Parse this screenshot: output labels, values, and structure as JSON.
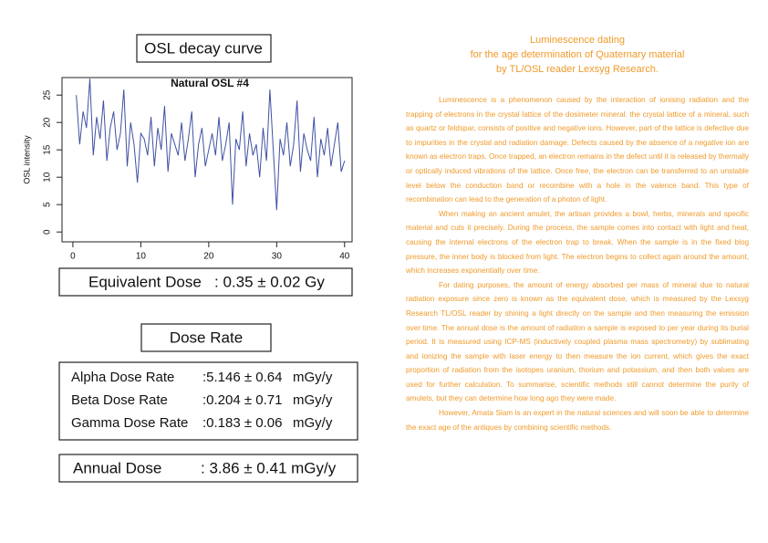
{
  "panel": {
    "curve_heading": "OSL decay curve",
    "equivalent_dose": {
      "label": "Equivalent Dose",
      "value": ": 0.35 ± 0.02 Gy"
    },
    "dose_rate_heading": "Dose Rate",
    "dose_rates": [
      {
        "label": "Alpha Dose Rate",
        "value": ":5.146 ± 0.64",
        "unit": "mGy/y"
      },
      {
        "label": "Beta Dose Rate",
        "value": ":0.204 ± 0.71",
        "unit": "mGy/y"
      },
      {
        "label": "Gamma Dose Rate",
        "value": ":0.183 ± 0.06",
        "unit": "mGy/y"
      }
    ],
    "annual_dose": {
      "label": "Annual Dose",
      "value": ": 3.86 ± 0.41 mGy/y"
    }
  },
  "chart_data": {
    "type": "line",
    "title": "Natural OSL #4",
    "y_label": "OSL intensity",
    "color": "#3f51a3",
    "x": [
      0.5,
      1,
      1.5,
      2,
      2.5,
      3,
      3.5,
      4,
      4.5,
      5,
      5.5,
      6,
      6.5,
      7,
      7.5,
      8,
      8.5,
      9,
      9.5,
      10,
      10.5,
      11,
      11.5,
      12,
      12.5,
      13,
      13.5,
      14,
      14.5,
      15,
      15.5,
      16,
      16.5,
      17,
      17.5,
      18,
      18.5,
      19,
      19.5,
      20,
      20.5,
      21,
      21.5,
      22,
      22.5,
      23,
      23.5,
      24,
      24.5,
      25,
      25.5,
      26,
      26.5,
      27,
      27.5,
      28,
      28.5,
      29,
      29.5,
      30,
      30.5,
      31,
      31.5,
      32,
      32.5,
      33,
      33.5,
      34,
      34.5,
      35,
      35.5,
      36,
      36.5,
      37,
      37.5,
      38,
      38.5,
      39,
      39.5,
      40
    ],
    "values": [
      25,
      16,
      22,
      19,
      28,
      14,
      21,
      17,
      24,
      13,
      19,
      22,
      15,
      18,
      26,
      12,
      20,
      16,
      9,
      18,
      17,
      14,
      21,
      12,
      19,
      15,
      23,
      11,
      18,
      16,
      14,
      20,
      13,
      17,
      22,
      10,
      16,
      19,
      12,
      15,
      18,
      14,
      21,
      13,
      16,
      20,
      5,
      17,
      15,
      22,
      12,
      18,
      14,
      16,
      10,
      19,
      13,
      26,
      15,
      4,
      17,
      14,
      20,
      12,
      16,
      24,
      11,
      18,
      15,
      13,
      21,
      10,
      17,
      14,
      19,
      12,
      16,
      20,
      11,
      13
    ],
    "xlim": [
      -1.6,
      41.1
    ],
    "xticks": [
      0,
      10,
      20,
      30,
      40
    ],
    "ylim": [
      -1.8,
      28.2
    ],
    "yticks": [
      0,
      5,
      10,
      15,
      20,
      25
    ]
  },
  "article": {
    "title": [
      "Luminescence dating",
      "for the age determination of Quaternary material",
      "by TL/OSL reader Lexsyg Research."
    ],
    "paragraphs": [
      "Luminescence is a phenomenon caused by the interaction of ionising radiation and the trapping of electrons in the crystal lattice of the dosimeter mineral. the crystal lattice of a mineral, such as quartz or feldspar, consists of positive and negative ions. However, part of the lattice is defective due to impurities in the crystal and radiation damage. Defects caused by the absence of a negative ion are known as electron traps. Once trapped, an electron remains in the defect until it is released by thermally or optically induced vibrations of the lattice. Once free, the electron can be transferred to an unstable level below the conduction band or recombine with a hole in the valence band. This type of recombination can lead to the generation of a photon of light.",
      "When making an ancient amulet, the artisan provides a bowl, herbs, minerals and specific material and cuts it precisely. During the process, the sample comes into contact with light and heat, causing the internal electrons of the electron trap to break. When the sample is in the fixed blog pressure, the inner body is blocked from light. The electron begins to collect again around the amount, which increases exponentially over time.",
      "For dating purposes, the amount of energy absorbed per mass of mineral due to natural radiation exposure since zero is known as the equivalent dose, which is measured by the Lexsyg Research TL/OSL reader by shining a light directly on the sample and then measuring the emission over time. The annual dose is the amount of radiation a sample is exposed to per year during its burial period. It is measured using ICP-MS (inductively coupled plasma mass spectrometry) by sublimating and ionizing the sample with laser energy to then measure the ion current, which gives the exact proportion of radiation from the isotopes uranium, thorium and potassium, and then both values are used for further calculation. To summarise, scientific methods still cannot determine the purity of amulets, but they can determine how long ago they were made.",
      "However, Amata Siam is an expert in the natural sciences and will soon be able to determine the exact age of the antiques by combining scientific methods."
    ]
  }
}
